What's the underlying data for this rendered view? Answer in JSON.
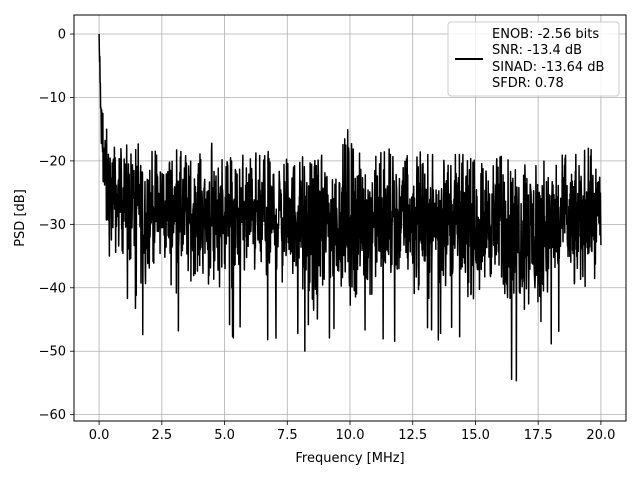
{
  "chart_data": {
    "type": "line",
    "xlabel": "Frequency [MHz]",
    "ylabel": "PSD [dB]",
    "xlim": [
      -1.0,
      21.0
    ],
    "ylim": [
      -61.0,
      3.0
    ],
    "x_ticks": [
      0.0,
      2.5,
      5.0,
      7.5,
      10.0,
      12.5,
      15.0,
      17.5,
      20.0
    ],
    "x_tick_labels": [
      "0.0",
      "2.5",
      "5.0",
      "7.5",
      "10.0",
      "12.5",
      "15.0",
      "17.5",
      "20.0"
    ],
    "y_ticks": [
      0,
      -10,
      -20,
      -30,
      -40,
      -50,
      -60
    ],
    "y_tick_labels": [
      "0",
      "−10",
      "−20",
      "−30",
      "−40",
      "−50",
      "−60"
    ],
    "grid": true,
    "legend_position": "top-right",
    "legend_entries": [
      "ENOB: -2.56 bits",
      "SNR: -13.4 dB",
      "SINAD: -13.64 dB",
      "SFDR: 0.78"
    ],
    "series": [
      {
        "color": "#000000",
        "x": [
          0.0,
          0.05,
          0.1,
          0.15,
          0.2,
          0.3,
          0.4,
          0.5,
          0.6,
          0.7,
          0.8,
          1.0,
          1.2,
          1.5,
          1.8,
          2.0,
          2.5,
          3.0,
          3.5,
          4.0,
          4.5,
          5.0,
          5.5,
          6.0,
          6.5,
          7.0,
          7.5,
          8.0,
          8.5,
          9.0,
          9.5,
          10.0,
          10.5,
          11.0,
          11.5,
          12.0,
          12.5,
          13.0,
          13.5,
          14.0,
          14.5,
          15.0,
          15.5,
          16.0,
          16.5,
          17.0,
          17.5,
          18.0,
          18.5,
          19.0,
          19.5,
          20.0
        ],
        "upper": [
          0,
          -4,
          -10,
          -12,
          -14,
          -15,
          -16,
          -17,
          -17,
          -18,
          -18,
          -17,
          -18,
          -16,
          -18,
          -18,
          -19,
          -18,
          -19,
          -19,
          -17,
          -18,
          -19,
          -18,
          -19,
          -18,
          -19,
          -19,
          -19,
          -18,
          -20,
          -14,
          -20,
          -19,
          -18,
          -19,
          -18,
          -19,
          -19,
          -19,
          -19,
          -20,
          -19,
          -19,
          -20,
          -19,
          -20,
          -20,
          -19,
          -19,
          -18,
          -19
        ],
        "lower": [
          -3,
          -20,
          -25,
          -30,
          -36,
          -40,
          -43,
          -42,
          -40,
          -44,
          -40,
          -42,
          -45,
          -44,
          -50,
          -45,
          -44,
          -47,
          -48,
          -45,
          -51,
          -46,
          -49,
          -46,
          -48,
          -50,
          -47,
          -48,
          -58,
          -50,
          -49,
          -55,
          -49,
          -48,
          -52,
          -47,
          -50,
          -48,
          -49,
          -47,
          -49,
          -51,
          -48,
          -50,
          -56,
          -52,
          -57,
          -50,
          -48,
          -51,
          -47,
          -44
        ]
      }
    ]
  }
}
